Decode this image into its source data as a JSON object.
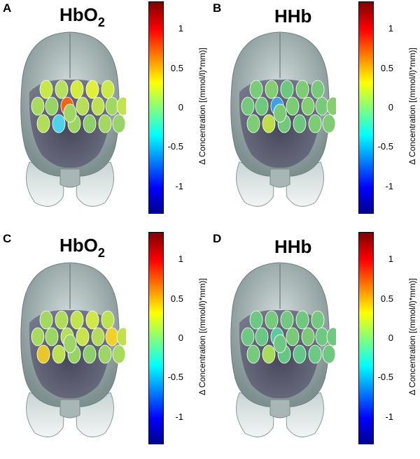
{
  "colorbar": {
    "ticks": [
      "1",
      "0.5",
      "0",
      "-0.5",
      "-1"
    ],
    "tick_values": [
      1,
      0.5,
      0,
      -0.5,
      -1
    ],
    "range": [
      -1.35,
      1.35
    ],
    "label": "Δ Concentration [(mmol/l)*mm)]"
  },
  "panels": [
    {
      "letter": "A",
      "title_main": "HbO",
      "title_sub": "2",
      "spot_colors": [
        "#c8e84a",
        "#b8e060",
        "#d4ec3e",
        "#e0f03a",
        "#ccea44",
        "#a8da5c",
        "#96d468",
        "#f06418",
        "#b6de58",
        "#bee052",
        "#a2d862",
        "#c2e44e",
        "#b2dc5a",
        "#50d2e8",
        "#9ed666",
        "#90d06c",
        "#a4d862",
        "#98d468",
        "#8ece6e",
        "#a0d664"
      ]
    },
    {
      "letter": "B",
      "title_main": "HHb",
      "title_sub": "",
      "spot_colors": [
        "#7acc78",
        "#84ce72",
        "#6cc880",
        "#80cc74",
        "#76ca7a",
        "#74ca7a",
        "#70c87e",
        "#3aa0e8",
        "#7ccc76",
        "#82ce72",
        "#78ca78",
        "#86ce70",
        "#7ecc74",
        "#bedd4a",
        "#72c87c",
        "#6ec67e",
        "#7ccc76",
        "#80cc74",
        "#76ca7a",
        "#7aca78"
      ]
    },
    {
      "letter": "C",
      "title_main": "HbO",
      "title_sub": "2",
      "spot_colors": [
        "#a4d862",
        "#b0dc5c",
        "#c2e24e",
        "#d0e846",
        "#bce252",
        "#a8da60",
        "#9ad666",
        "#b6de58",
        "#c8e44a",
        "#b4dc5a",
        "#f0d02a",
        "#c0e250",
        "#e8c828",
        "#bce052",
        "#96d468",
        "#8ece6c",
        "#9ed666",
        "#a8da60",
        "#a2d862",
        "#9cd666"
      ]
    },
    {
      "letter": "D",
      "title_main": "HHb",
      "title_sub": "",
      "spot_colors": [
        "#6cc884",
        "#76ca7c",
        "#72c87e",
        "#70c880",
        "#74ca7c",
        "#6ec882",
        "#6ac684",
        "#5ccaa0",
        "#78ca7a",
        "#7cca78",
        "#6ec882",
        "#72c880",
        "#76ca7c",
        "#a8da5c",
        "#66c686",
        "#64c688",
        "#6cc884",
        "#70c880",
        "#6ac684",
        "#6ec882"
      ]
    }
  ]
}
